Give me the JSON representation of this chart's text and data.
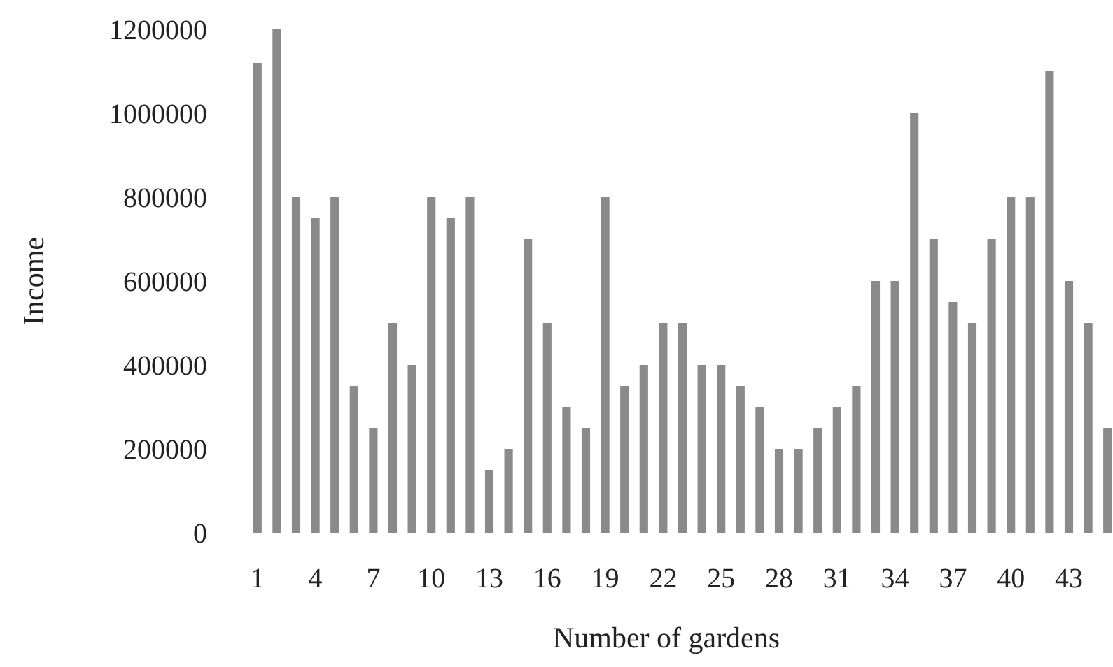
{
  "chart_data": {
    "type": "bar",
    "xlabel": "Number of gardens",
    "ylabel": "Income",
    "categories": [
      "1",
      null,
      null,
      "4",
      null,
      null,
      "7",
      null,
      null,
      "10",
      null,
      null,
      "13",
      null,
      null,
      "16",
      null,
      null,
      "19",
      null,
      null,
      "22",
      null,
      null,
      "25",
      null,
      null,
      "28",
      null,
      null,
      "31",
      null,
      null,
      "34",
      null,
      null,
      "37",
      null,
      null,
      "40",
      null,
      null,
      "43",
      null,
      null
    ],
    "values": [
      1120000,
      1200000,
      800000,
      750000,
      800000,
      350000,
      250000,
      500000,
      400000,
      800000,
      750000,
      800000,
      150000,
      200000,
      700000,
      500000,
      300000,
      250000,
      800000,
      350000,
      400000,
      500000,
      500000,
      400000,
      400000,
      350000,
      300000,
      200000,
      200000,
      250000,
      300000,
      350000,
      600000,
      600000,
      1000000,
      700000,
      550000,
      500000,
      700000,
      800000,
      800000,
      1100000,
      600000,
      500000,
      250000
    ],
    "color": "#8a8a8a",
    "ylim": [
      0,
      1200000
    ],
    "yticks": [
      0,
      200000,
      400000,
      600000,
      800000,
      1000000,
      1200000
    ],
    "grid": false
  }
}
